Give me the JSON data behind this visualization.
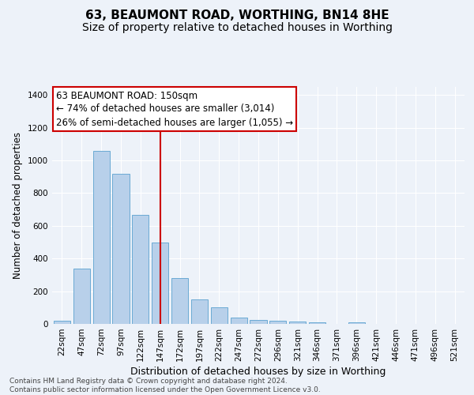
{
  "title_line1": "63, BEAUMONT ROAD, WORTHING, BN14 8HE",
  "title_line2": "Size of property relative to detached houses in Worthing",
  "xlabel": "Distribution of detached houses by size in Worthing",
  "ylabel": "Number of detached properties",
  "categories": [
    "22sqm",
    "47sqm",
    "72sqm",
    "97sqm",
    "122sqm",
    "147sqm",
    "172sqm",
    "197sqm",
    "222sqm",
    "247sqm",
    "272sqm",
    "296sqm",
    "321sqm",
    "346sqm",
    "371sqm",
    "396sqm",
    "421sqm",
    "446sqm",
    "471sqm",
    "496sqm",
    "521sqm"
  ],
  "values": [
    20,
    340,
    1060,
    920,
    665,
    500,
    280,
    150,
    100,
    40,
    25,
    20,
    15,
    10,
    0,
    10,
    0,
    0,
    0,
    0,
    0
  ],
  "bar_color": "#b8d0ea",
  "bar_edge_color": "#6aaad4",
  "vline_color": "#cc0000",
  "annotation_text": "63 BEAUMONT ROAD: 150sqm\n← 74% of detached houses are smaller (3,014)\n26% of semi-detached houses are larger (1,055) →",
  "annotation_box_color": "#ffffff",
  "annotation_box_edge_color": "#cc0000",
  "ylim": [
    0,
    1450
  ],
  "yticks": [
    0,
    200,
    400,
    600,
    800,
    1000,
    1200,
    1400
  ],
  "bg_color": "#edf2f9",
  "footer_text": "Contains HM Land Registry data © Crown copyright and database right 2024.\nContains public sector information licensed under the Open Government Licence v3.0.",
  "title_fontsize": 11,
  "subtitle_fontsize": 10,
  "xlabel_fontsize": 9,
  "ylabel_fontsize": 8.5,
  "tick_fontsize": 7.5,
  "annotation_fontsize": 8.5,
  "footer_fontsize": 6.5
}
